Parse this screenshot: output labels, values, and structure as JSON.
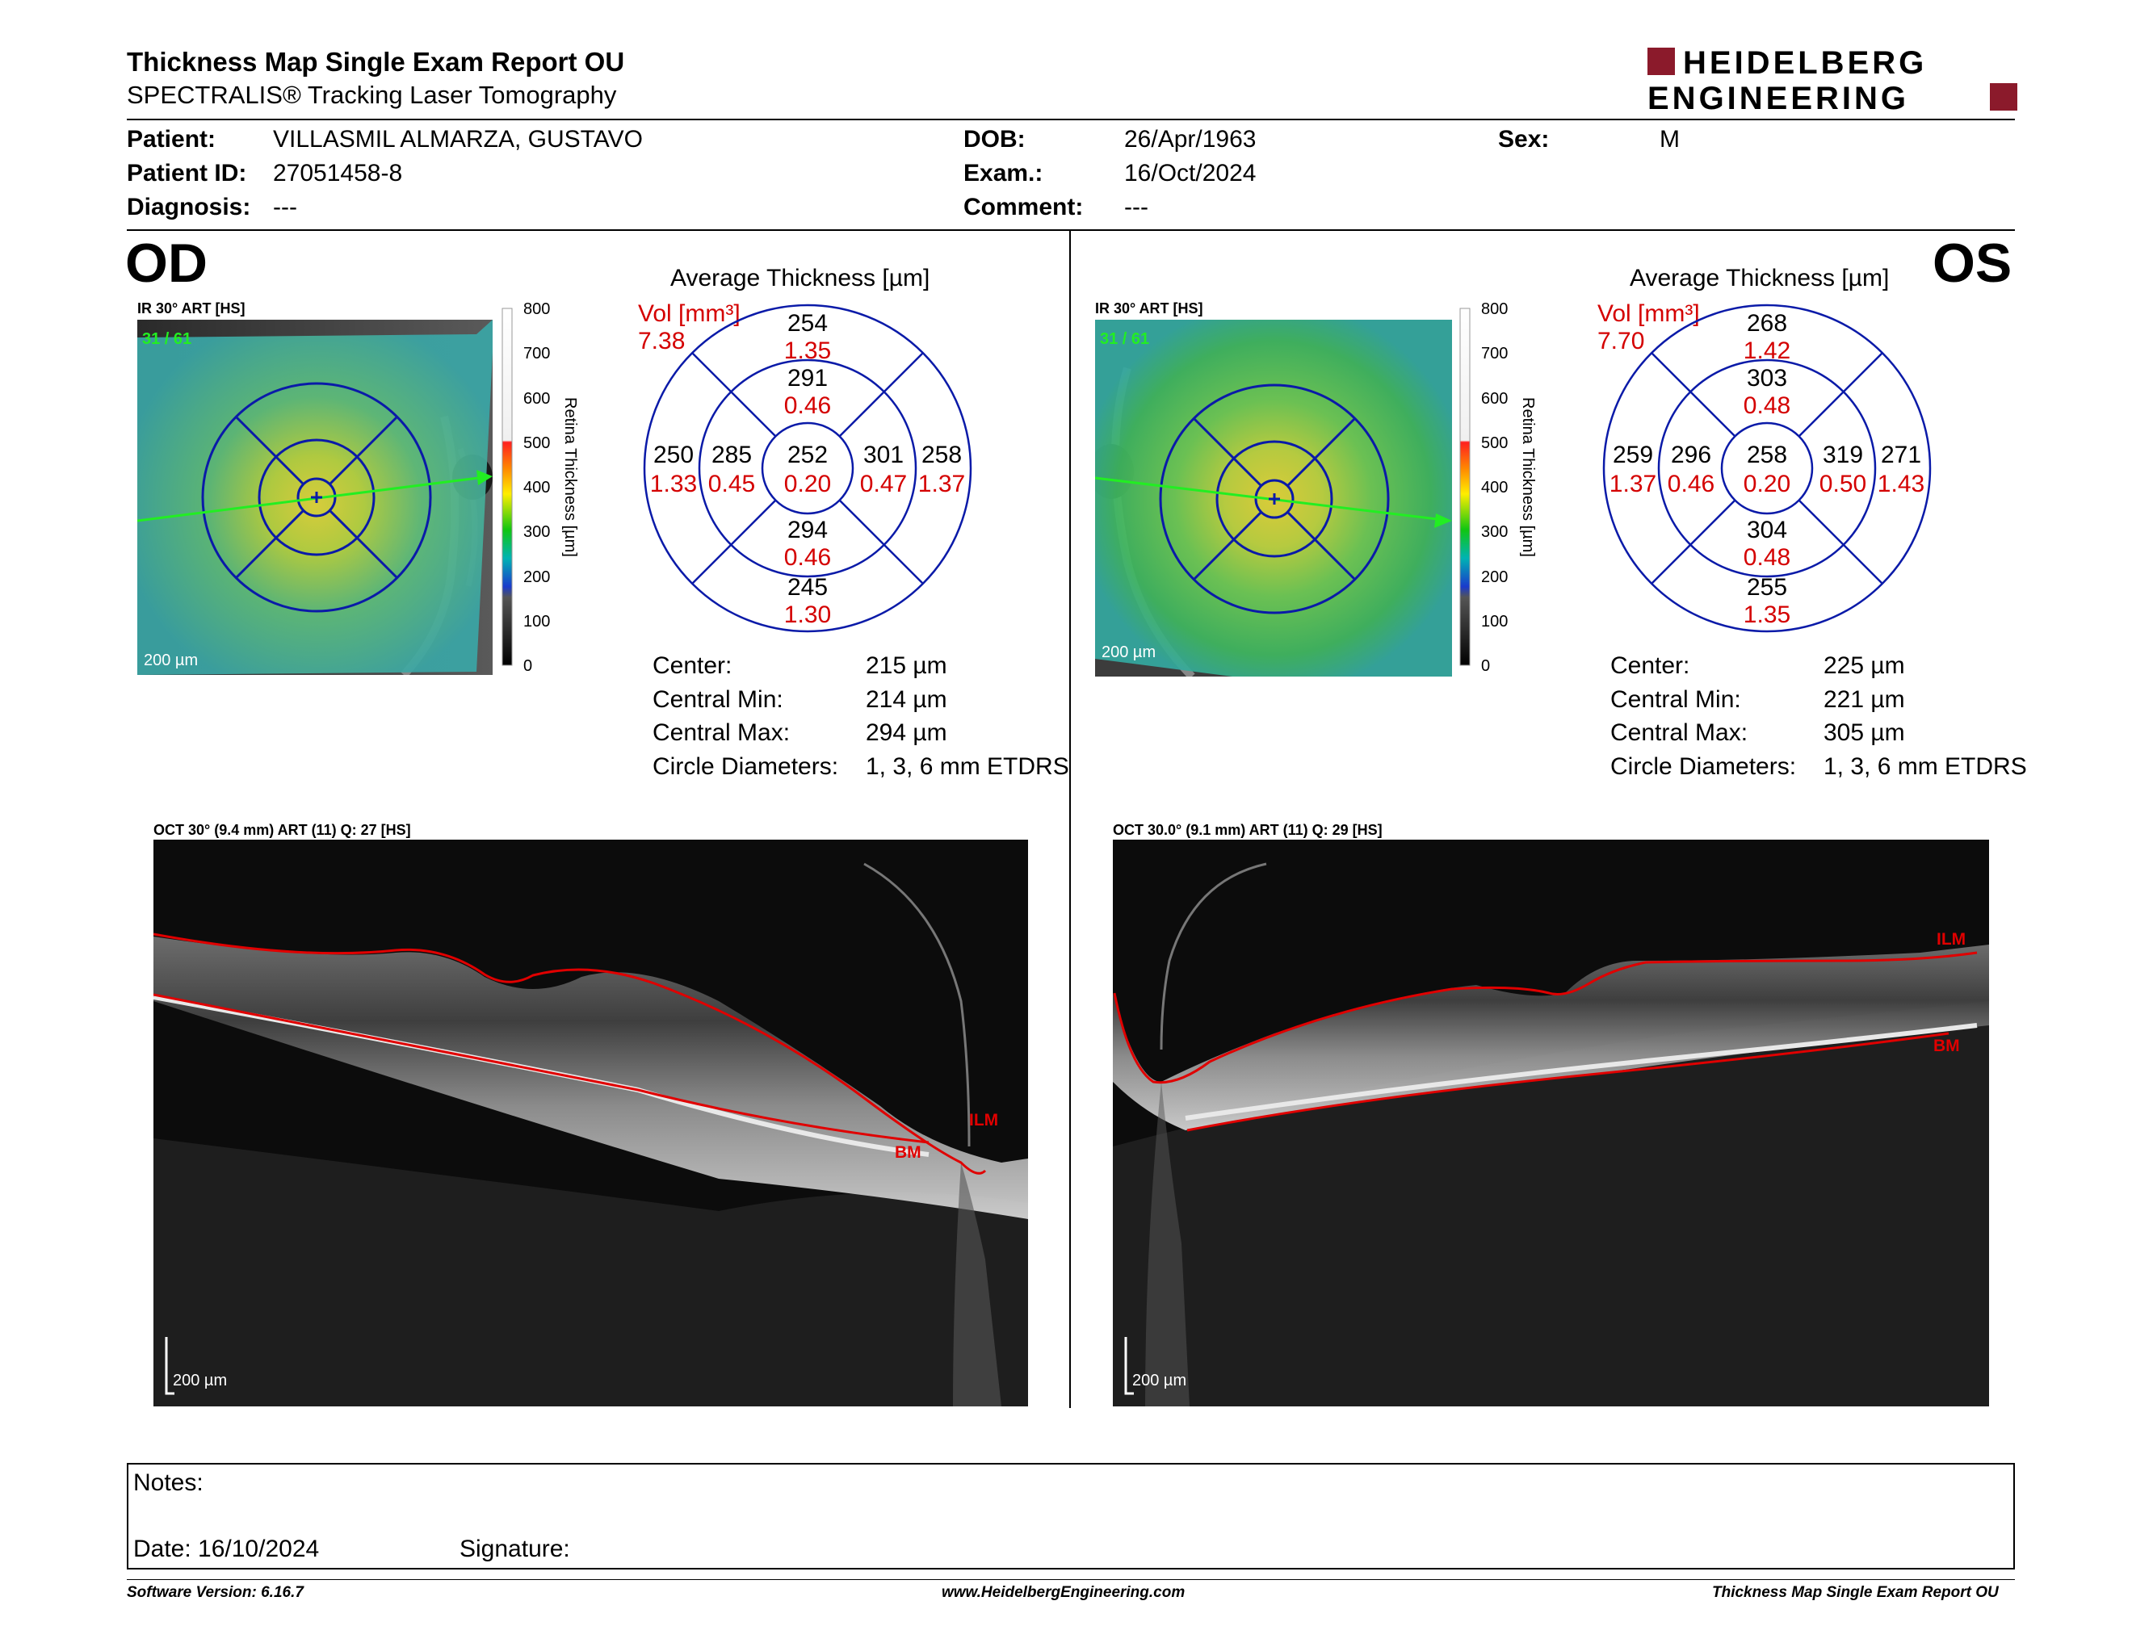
{
  "header": {
    "title": "Thickness Map Single Exam Report OU",
    "subtitle": "SPECTRALIS® Tracking Laser Tomography",
    "logo_line1": "HEIDELBERG",
    "logo_line2": "ENGINEERING",
    "brand_color": "#8b1a2b"
  },
  "patient": {
    "patient_label": "Patient:",
    "patient_value": "VILLASMIL ALMARZA, GUSTAVO",
    "id_label": "Patient ID:",
    "id_value": "27051458-8",
    "diagnosis_label": "Diagnosis:",
    "diagnosis_value": "---",
    "dob_label": "DOB:",
    "dob_value": "26/Apr/1963",
    "exam_label": "Exam.:",
    "exam_value": "16/Oct/2024",
    "comment_label": "Comment:",
    "comment_value": "---",
    "sex_label": "Sex:",
    "sex_value": "M"
  },
  "od": {
    "eye": "OD",
    "ir_label": "IR 30° ART [HS]",
    "frames": "31 / 61",
    "scale": "200 µm",
    "colorbar": {
      "ticks": [
        "800",
        "700",
        "600",
        "500",
        "400",
        "300",
        "200",
        "100",
        "0"
      ],
      "label": "Retina  Thickness [µm]"
    },
    "grid_title": "Average Thickness [µm]",
    "vol_label": "Vol [mm³]",
    "vol_value": "7.38",
    "grid": {
      "outer_top": "254",
      "outer_top_vol": "1.35",
      "inner_top": "291",
      "inner_top_vol": "0.46",
      "outer_left": "250",
      "outer_left_vol": "1.33",
      "inner_left": "285",
      "inner_left_vol": "0.45",
      "center": "252",
      "center_vol": "0.20",
      "inner_right": "301",
      "inner_right_vol": "0.47",
      "outer_right": "258",
      "outer_right_vol": "1.37",
      "inner_bottom": "294",
      "inner_bottom_vol": "0.46",
      "outer_bottom": "245",
      "outer_bottom_vol": "1.30"
    },
    "stats": [
      {
        "label": "Center:",
        "value": "215 µm"
      },
      {
        "label": "Central Min:",
        "value": "214 µm"
      },
      {
        "label": "Central Max:",
        "value": "294 µm"
      },
      {
        "label": "Circle Diameters:",
        "value": "1, 3, 6 mm ETDRS"
      }
    ],
    "oct_label": "OCT 30° (9.4 mm) ART (11) Q: 27 [HS]",
    "oct_ilm": "ILM",
    "oct_bm": "BM",
    "oct_scale": "200 µm"
  },
  "os": {
    "eye": "OS",
    "ir_label": "IR 30° ART [HS]",
    "frames": "31 / 61",
    "scale": "200 µm",
    "colorbar": {
      "ticks": [
        "800",
        "700",
        "600",
        "500",
        "400",
        "300",
        "200",
        "100",
        "0"
      ],
      "label": "Retina  Thickness [µm]"
    },
    "grid_title": "Average Thickness [µm]",
    "vol_label": "Vol [mm³]",
    "vol_value": "7.70",
    "grid": {
      "outer_top": "268",
      "outer_top_vol": "1.42",
      "inner_top": "303",
      "inner_top_vol": "0.48",
      "outer_left": "259",
      "outer_left_vol": "1.37",
      "inner_left": "296",
      "inner_left_vol": "0.46",
      "center": "258",
      "center_vol": "0.20",
      "inner_right": "319",
      "inner_right_vol": "0.50",
      "outer_right": "271",
      "outer_right_vol": "1.43",
      "inner_bottom": "304",
      "inner_bottom_vol": "0.48",
      "outer_bottom": "255",
      "outer_bottom_vol": "1.35"
    },
    "stats": [
      {
        "label": "Center:",
        "value": "225 µm"
      },
      {
        "label": "Central Min:",
        "value": "221 µm"
      },
      {
        "label": "Central Max:",
        "value": "305 µm"
      },
      {
        "label": "Circle Diameters:",
        "value": "1, 3, 6 mm ETDRS"
      }
    ],
    "oct_label": "OCT 30.0° (9.1 mm) ART (11) Q: 29 [HS]",
    "oct_ilm": "ILM",
    "oct_bm": "BM",
    "oct_scale": "200 µm"
  },
  "notes": {
    "notes_label": "Notes:",
    "date_label": "Date: 16/10/2024",
    "signature_label": "Signature:"
  },
  "footer": {
    "software": "Software Version: 6.16.7",
    "website": "www.HeidelbergEngineering.com",
    "report": "Thickness Map Single Exam Report OU"
  }
}
